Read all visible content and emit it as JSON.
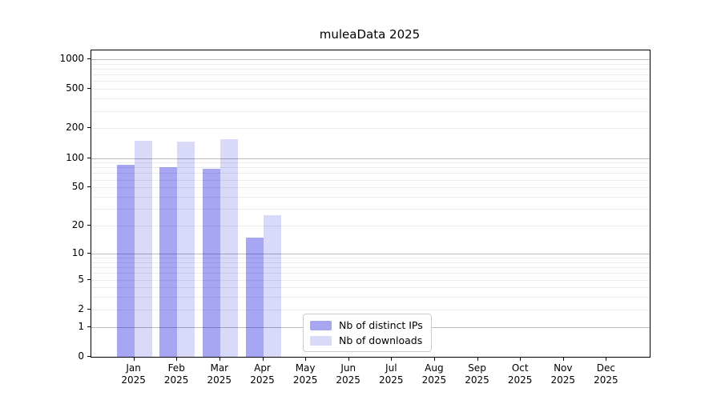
{
  "chart_data": {
    "type": "bar",
    "title": "muleaData 2025",
    "categories": [
      "Jan",
      "Feb",
      "Mar",
      "Apr",
      "May",
      "Jun",
      "Jul",
      "Aug",
      "Sep",
      "Oct",
      "Nov",
      "Dec"
    ],
    "category_year": "2025",
    "series": [
      {
        "name": "Nb of distinct IPs",
        "color": "rgba(0,0,221,0.35)",
        "values": [
          85,
          81,
          77,
          15,
          0,
          0,
          0,
          0,
          0,
          0,
          0,
          0
        ]
      },
      {
        "name": "Nb of downloads",
        "color": "rgba(0,0,221,0.15)",
        "values": [
          150,
          148,
          156,
          26,
          0,
          0,
          0,
          0,
          0,
          0,
          0,
          0
        ]
      }
    ],
    "y_axis": {
      "scale": "log10(value+1)",
      "tick_labels": [
        1000,
        500,
        200,
        100,
        50,
        20,
        10,
        5,
        2,
        1,
        0
      ],
      "major_gridlines": [
        1,
        10,
        100,
        1000
      ],
      "minor_gridline_subs": [
        2,
        3,
        4,
        5,
        6,
        7,
        8,
        9
      ],
      "minor_gridline_decades": [
        1,
        10,
        100
      ],
      "ylim_top": 1226
    },
    "legend": {
      "entries": [
        "Nb of distinct IPs",
        "Nb of downloads"
      ],
      "position": "inside-bottom-center"
    },
    "colors": {
      "background": "#ffffff",
      "axis": "#000000",
      "major_grid": "#bbbbbb",
      "minor_grid": "#ebebeb",
      "legend_border": "#cccccc"
    }
  }
}
